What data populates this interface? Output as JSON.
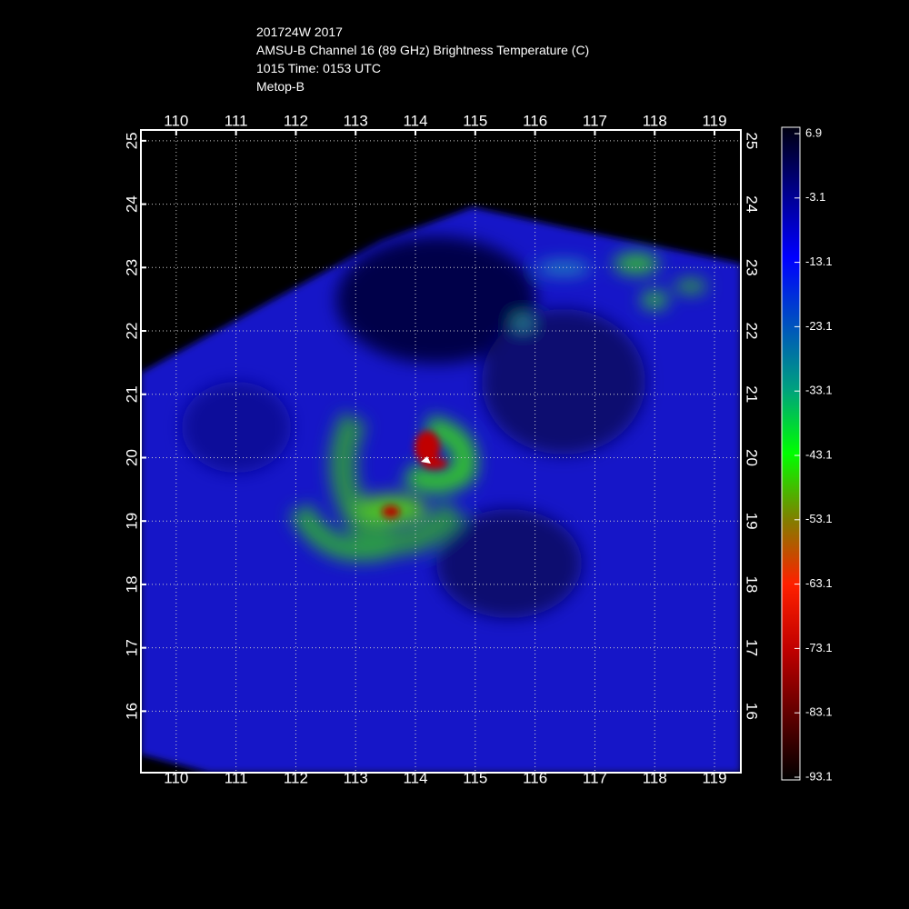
{
  "header": {
    "lines": [
      "201724W 2017",
      "AMSU-B Channel 16 (89 GHz) Brightness Temperature (C)",
      "1015 Time: 0153 UTC",
      "Metop-B"
    ]
  },
  "map": {
    "xlim": [
      109.41,
      119.44
    ],
    "ylim": [
      15.03,
      25.17
    ],
    "lon_ticks": [
      110,
      111,
      112,
      113,
      114,
      115,
      116,
      117,
      118,
      119
    ],
    "lat_ticks": [
      16,
      17,
      18,
      19,
      20,
      21,
      22,
      23,
      24,
      25
    ],
    "grid": true
  },
  "colorbar": {
    "lim": [
      -93.1,
      6.9
    ],
    "ticks": [
      6.9,
      -3.1,
      -13.1,
      -23.1,
      -33.1,
      -43.1,
      -53.1,
      -63.1,
      -73.1,
      -83.1,
      -93.1
    ]
  }
}
